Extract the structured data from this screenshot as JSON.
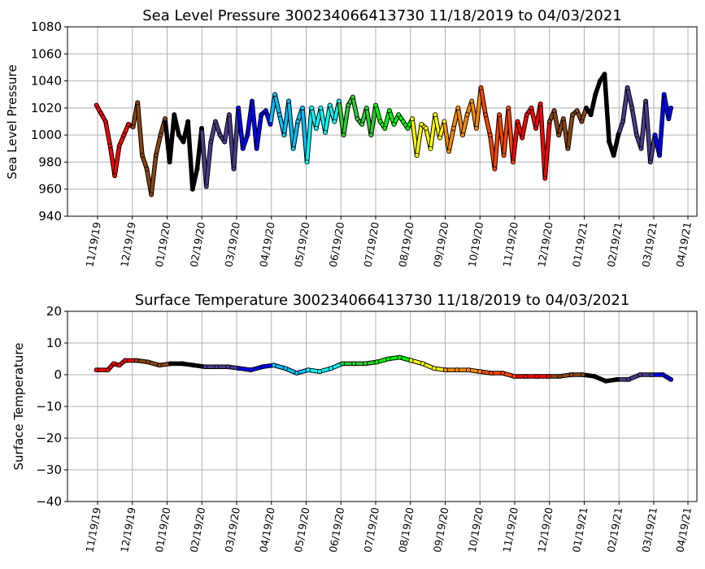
{
  "chart_data": [
    {
      "type": "scatter",
      "title": "Sea Level Pressure 300234066413730  11/18/2019 to 04/03/2021",
      "xlabel": "",
      "ylabel": "Sea Level Pressure",
      "ylim": [
        940,
        1080
      ],
      "yticks": [
        "940",
        "960",
        "980",
        "1000",
        "1020",
        "1040",
        "1060",
        "1080"
      ],
      "xticks": [
        "11/19/19",
        "12/19/19",
        "01/19/20",
        "02/19/20",
        "03/19/20",
        "04/19/20",
        "05/19/20",
        "06/19/20",
        "07/19/20",
        "08/19/20",
        "09/19/20",
        "10/19/20",
        "11/19/20",
        "12/19/20",
        "01/19/21",
        "02/19/21",
        "03/19/21",
        "04/19/21"
      ],
      "grid": true,
      "segment_colors": [
        "#ff0000",
        "#8b4513",
        "#000000",
        "#483d8b",
        "#0000ff",
        "#00bfff",
        "#00ffff",
        "#32cd32",
        "#00ff00",
        "#ffff00",
        "#ff8c00",
        "#ff4500",
        "#ff0000",
        "#8b4513",
        "#000000",
        "#483d8b",
        "#0000ff",
        "#00bfff"
      ],
      "series": [
        {
          "x": [
            "11/18/19",
            "11/22/19",
            "11/26/19",
            "11/30/19",
            "12/04/19",
            "12/08/19",
            "12/12/19",
            "12/16/19",
            "12/20/19",
            "12/24/19",
            "12/28/19",
            "01/01/20",
            "01/05/20",
            "01/09/20",
            "01/13/20",
            "01/17/20",
            "01/21/20",
            "01/25/20",
            "01/29/20",
            "02/02/20",
            "02/06/20",
            "02/10/20",
            "02/14/20",
            "02/18/20",
            "02/22/20",
            "02/26/20",
            "03/01/20",
            "03/05/20",
            "03/09/20",
            "03/13/20",
            "03/17/20",
            "03/21/20",
            "03/25/20",
            "03/29/20",
            "04/02/20",
            "04/06/20",
            "04/10/20",
            "04/14/20",
            "04/18/20",
            "04/22/20",
            "04/26/20",
            "04/30/20",
            "05/04/20",
            "05/08/20",
            "05/12/20",
            "05/16/20",
            "05/20/20",
            "05/24/20",
            "05/28/20",
            "06/01/20",
            "06/05/20",
            "06/09/20",
            "06/13/20",
            "06/17/20",
            "06/21/20",
            "06/25/20",
            "06/29/20",
            "07/03/20",
            "07/07/20",
            "07/11/20",
            "07/15/20",
            "07/19/20",
            "07/23/20",
            "07/27/20",
            "07/31/20",
            "08/04/20",
            "08/08/20",
            "08/12/20",
            "08/16/20",
            "08/20/20",
            "08/24/20",
            "08/28/20",
            "09/01/20",
            "09/05/20",
            "09/09/20",
            "09/13/20",
            "09/17/20",
            "09/21/20",
            "09/25/20",
            "09/29/20",
            "10/03/20",
            "10/07/20",
            "10/11/20",
            "10/15/20",
            "10/19/20",
            "10/23/20",
            "10/27/20",
            "10/31/20",
            "11/04/20",
            "11/08/20",
            "11/12/20",
            "11/16/20",
            "11/20/20",
            "11/24/20",
            "11/28/20",
            "12/02/20",
            "12/06/20",
            "12/10/20",
            "12/14/20",
            "12/18/20",
            "12/22/20",
            "12/26/20",
            "12/30/20",
            "01/03/21",
            "01/07/21",
            "01/11/21",
            "01/15/21",
            "01/19/21",
            "01/23/21",
            "01/27/21",
            "01/31/21",
            "02/04/21",
            "02/08/21",
            "02/12/21",
            "02/16/21",
            "02/20/21",
            "02/24/21",
            "02/28/21",
            "03/04/21",
            "03/08/21",
            "03/12/21",
            "03/16/21",
            "03/20/21",
            "03/24/21",
            "03/28/21",
            "04/01/21",
            "04/03/21"
          ],
          "values": [
            1022,
            1016,
            1010,
            992,
            970,
            992,
            1000,
            1008,
            1006,
            1024,
            985,
            975,
            956,
            985,
            1000,
            1012,
            980,
            1015,
            1000,
            995,
            1010,
            960,
            975,
            1005,
            962,
            995,
            1010,
            1000,
            995,
            1015,
            975,
            1020,
            990,
            1000,
            1025,
            990,
            1015,
            1018,
            1008,
            1030,
            1015,
            1000,
            1025,
            990,
            1010,
            1020,
            980,
            1020,
            1005,
            1020,
            1002,
            1022,
            1010,
            1025,
            1000,
            1022,
            1028,
            1012,
            1008,
            1020,
            1000,
            1022,
            1010,
            1005,
            1018,
            1008,
            1015,
            1010,
            1005,
            1012,
            985,
            1008,
            1005,
            990,
            1015,
            998,
            1010,
            988,
            1005,
            1020,
            1000,
            1015,
            1025,
            1005,
            1035,
            1015,
            1000,
            975,
            1015,
            985,
            1020,
            980,
            1010,
            998,
            1015,
            1020,
            1005,
            1023,
            968,
            1010,
            1018,
            1000,
            1012,
            990,
            1015,
            1018,
            1010,
            1020,
            1015,
            1030,
            1040,
            1045,
            995,
            985,
            1000,
            1010,
            1035,
            1020,
            1000,
            990,
            1025,
            980,
            1000,
            985,
            1030,
            1012,
            1020
          ]
        }
      ]
    },
    {
      "type": "scatter",
      "title": "Surface Temperature 300234066413730  11/18/2019 to 04/03/2021",
      "xlabel": "",
      "ylabel": "Surface Temperature",
      "ylim": [
        -40,
        20
      ],
      "yticks": [
        "−40",
        "−30",
        "−20",
        "−10",
        "0",
        "10",
        "20"
      ],
      "xticks": [
        "11/19/19",
        "12/19/19",
        "01/19/20",
        "02/19/20",
        "03/19/20",
        "04/19/20",
        "05/19/20",
        "06/19/20",
        "07/19/20",
        "08/19/20",
        "09/19/20",
        "10/19/20",
        "11/19/20",
        "12/19/20",
        "01/19/21",
        "02/19/21",
        "03/19/21",
        "04/19/21"
      ],
      "grid": true,
      "segment_colors": [
        "#ff0000",
        "#8b4513",
        "#000000",
        "#483d8b",
        "#0000ff",
        "#00bfff",
        "#00ffff",
        "#32cd32",
        "#00ff00",
        "#ffff00",
        "#ff8c00",
        "#ff4500",
        "#ff0000",
        "#8b4513",
        "#000000",
        "#483d8b",
        "#0000ff",
        "#00bfff"
      ],
      "series": [
        {
          "x": [
            "11/18/19",
            "11/28/19",
            "12/03/19",
            "12/08/19",
            "12/13/19",
            "12/23/19",
            "01/02/20",
            "01/12/20",
            "01/22/20",
            "02/01/20",
            "02/11/20",
            "02/21/20",
            "03/02/20",
            "03/12/20",
            "03/22/20",
            "04/01/20",
            "04/11/20",
            "04/21/20",
            "05/01/20",
            "05/11/20",
            "05/21/20",
            "05/31/20",
            "06/10/20",
            "06/20/20",
            "06/30/20",
            "07/10/20",
            "07/20/20",
            "07/30/20",
            "08/09/20",
            "08/19/20",
            "08/29/20",
            "09/08/20",
            "09/18/20",
            "09/28/20",
            "10/08/20",
            "10/18/20",
            "10/28/20",
            "11/07/20",
            "11/17/20",
            "11/27/20",
            "12/07/20",
            "12/17/20",
            "12/27/20",
            "01/06/21",
            "01/16/21",
            "01/26/21",
            "02/05/21",
            "02/15/21",
            "02/25/21",
            "03/07/21",
            "03/17/21",
            "03/27/21",
            "04/03/21"
          ],
          "values": [
            1.5,
            1.5,
            3.5,
            3,
            4.5,
            4.5,
            4,
            3,
            3.5,
            3.5,
            3,
            2.5,
            2.5,
            2.5,
            2,
            1.5,
            2.5,
            3,
            2,
            0.5,
            1.5,
            1,
            2,
            3.5,
            3.5,
            3.5,
            4,
            5,
            5.5,
            4.5,
            3.5,
            2,
            1.5,
            1.5,
            1.5,
            1,
            0.5,
            0.5,
            -0.5,
            -0.5,
            -0.5,
            -0.5,
            -0.5,
            0,
            0,
            -0.5,
            -2,
            -1.5,
            -1.5,
            0,
            0,
            0,
            -1.5
          ]
        }
      ]
    }
  ]
}
